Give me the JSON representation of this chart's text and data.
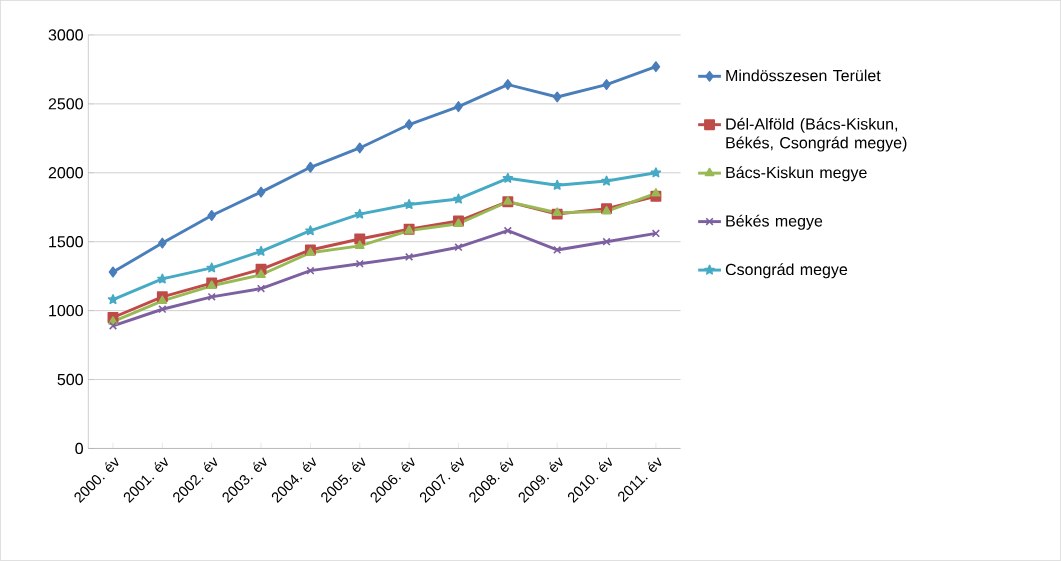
{
  "chart_data": {
    "type": "line",
    "categories": [
      "2000. év",
      "2001. év",
      "2002. év",
      "2003. év",
      "2004. év",
      "2005. év",
      "2006. év",
      "2007. év",
      "2008. év",
      "2009. év",
      "2010. év",
      "2011. év"
    ],
    "series": [
      {
        "name": "Mindösszesen Terület",
        "color": "#4a7ebb",
        "marker": "diamond",
        "values": [
          1280,
          1490,
          1690,
          1860,
          2040,
          2180,
          2350,
          2480,
          2640,
          2550,
          2640,
          2770
        ]
      },
      {
        "name": "Dél-Alföld (Bács-Kiskun, Békés, Csongrád megye)",
        "color": "#be4b48",
        "marker": "square",
        "values": [
          950,
          1100,
          1200,
          1300,
          1440,
          1520,
          1590,
          1650,
          1790,
          1700,
          1740,
          1830
        ]
      },
      {
        "name": "Bács-Kiskun megye",
        "color": "#98b954",
        "marker": "triangle",
        "values": [
          920,
          1070,
          1180,
          1260,
          1420,
          1470,
          1580,
          1630,
          1790,
          1710,
          1720,
          1850
        ]
      },
      {
        "name": "Békés megye",
        "color": "#7d60a0",
        "marker": "cross",
        "values": [
          890,
          1010,
          1100,
          1160,
          1290,
          1340,
          1390,
          1460,
          1580,
          1440,
          1500,
          1560
        ]
      },
      {
        "name": "Csongrád megye",
        "color": "#46aac5",
        "marker": "star",
        "values": [
          1080,
          1230,
          1310,
          1430,
          1580,
          1700,
          1770,
          1810,
          1960,
          1910,
          1940,
          2000
        ]
      }
    ],
    "ylim": [
      0,
      3000
    ],
    "yticks": [
      0,
      500,
      1000,
      1500,
      2000,
      2500,
      3000
    ],
    "grid": "y",
    "legend": "right"
  }
}
